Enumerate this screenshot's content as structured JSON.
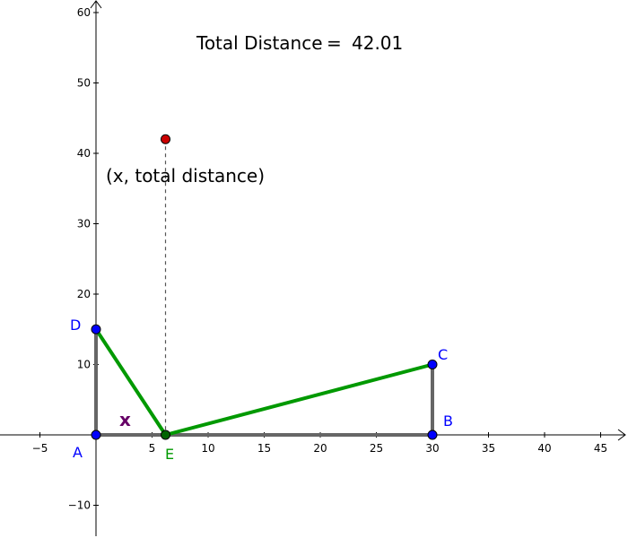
{
  "title": {
    "label": "Total Distance",
    "equals": "=",
    "value": "42.01"
  },
  "plot_point_label": "(x, total distance)",
  "x_segment_label": "x",
  "colors": {
    "axis": "#000000",
    "frame": "#666666",
    "green": "#009900",
    "point_blue": "#0000ff",
    "point_red": "#cc0000",
    "point_green": "#006400",
    "label_blue": "#0000ff",
    "label_green": "#009900",
    "x_label": "#660066",
    "dashed": "#555555"
  },
  "axes": {
    "x_ticks": [
      "−5",
      "5",
      "10",
      "15",
      "20",
      "25",
      "30",
      "35",
      "40",
      "45"
    ],
    "x_tick_values": [
      -5,
      5,
      10,
      15,
      20,
      25,
      30,
      35,
      40,
      45
    ],
    "y_ticks": [
      "−10",
      "10",
      "20",
      "30",
      "40",
      "50",
      "60"
    ],
    "y_tick_values": [
      -10,
      10,
      20,
      30,
      40,
      50,
      60
    ]
  },
  "points": [
    {
      "name": "A",
      "x": 0,
      "y": 0
    },
    {
      "name": "B",
      "x": 30,
      "y": 0
    },
    {
      "name": "C",
      "x": 30,
      "y": 10
    },
    {
      "name": "D",
      "x": 0,
      "y": 15
    },
    {
      "name": "E",
      "x": 6.2,
      "y": 0
    }
  ],
  "plot_point": {
    "x": 6.2,
    "y": 42.01
  }
}
